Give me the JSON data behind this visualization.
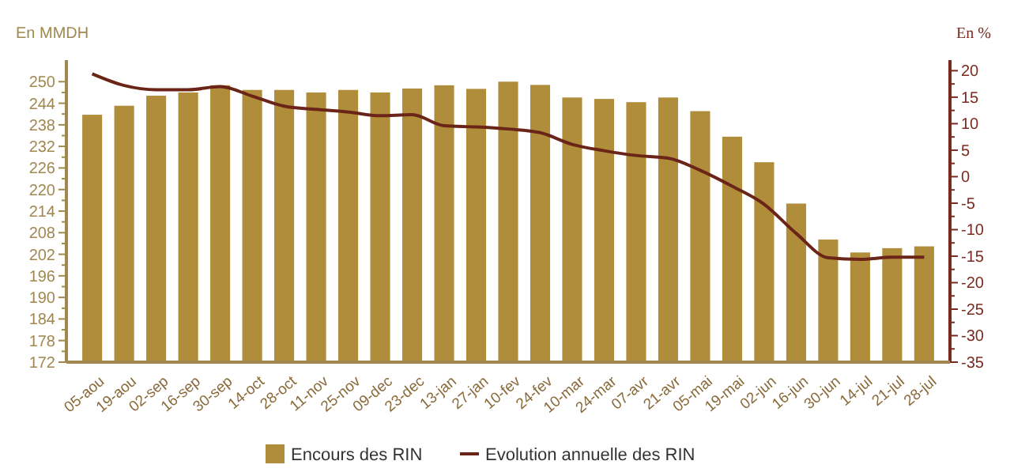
{
  "chart_data": {
    "type": "bar",
    "ylabel": "En MMDH",
    "y2label": "En %",
    "categories": [
      "05-aou",
      "19-aou",
      "02-sep",
      "16-sep",
      "30-sep",
      "14-oct",
      "28-oct",
      "11-nov",
      "25-nov",
      "09-dec",
      "23-dec",
      "13-jan",
      "27-jan",
      "10-fev",
      "24-fev",
      "10-mar",
      "24-mar",
      "07-avr",
      "21-avr",
      "05-mai",
      "19-mai",
      "02-jun",
      "16-jun",
      "30-jun",
      "14-jul",
      "21-jul",
      "28-jul"
    ],
    "series": [
      {
        "name": "Encours des RIN",
        "color": "#b08d3a",
        "values": [
          240.8,
          243.3,
          246.1,
          247,
          249,
          247.7,
          247.7,
          247,
          247.7,
          247,
          248.1,
          249,
          248,
          250,
          249.1,
          245.6,
          245.2,
          244.3,
          245.6,
          241.8,
          234.7,
          227.6,
          216.1,
          206.1,
          202.5,
          203.7,
          204.2
        ]
      },
      {
        "name": "Evolution annuelle des RIN",
        "type": "line",
        "axis": "y2",
        "color": "#6b2418",
        "values": [
          19.4,
          17.2,
          16.4,
          16.4,
          17,
          15.2,
          13.3,
          12.7,
          12.2,
          11.5,
          11.7,
          9.6,
          9.4,
          9,
          8.3,
          6.1,
          4.9,
          4,
          3.5,
          1.2,
          -1.8,
          -5.2,
          -10.7,
          -15.3,
          -15.6,
          -15.2,
          -15.2
        ]
      }
    ],
    "ylim": [
      172,
      256
    ],
    "yticks": [
      172,
      178,
      184,
      190,
      196,
      202,
      208,
      214,
      220,
      226,
      232,
      238,
      244,
      250
    ],
    "y2lim": [
      -35,
      22
    ],
    "y2ticks": [
      -35,
      -30,
      -25,
      -20,
      -15,
      -10,
      -5,
      0,
      5,
      10,
      15,
      20
    ],
    "grid": false,
    "legend": "bottom",
    "marker": "none",
    "line_style": "solid"
  }
}
